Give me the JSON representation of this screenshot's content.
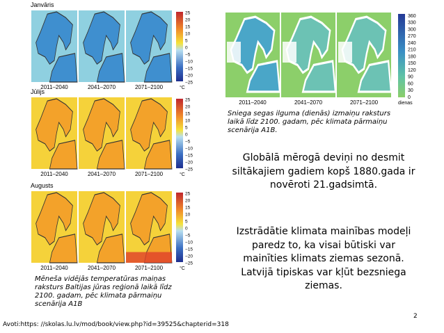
{
  "temperature_figure": {
    "panels": [
      {
        "month": "Janvāris"
      },
      {
        "month": "Jūlijs"
      },
      {
        "month": "Augusts"
      }
    ],
    "periods": [
      "2011–2040",
      "2041–2070",
      "2071–2100"
    ],
    "scale_labels": [
      "25",
      "20",
      "15",
      "10",
      "5",
      "0",
      "−5",
      "−10",
      "−15",
      "−20",
      "−25"
    ],
    "scale_unit": "°C",
    "caption": "Mēneša vidējās temperatūras maiņas raksturs Baltijas jūras reģionā laikā līdz 2100. gadam, pēc klimata pārmaiņu scenārija A1B"
  },
  "snow_figure": {
    "periods": [
      "2011–2040",
      "2041–2070",
      "2071–2100"
    ],
    "scale_labels": [
      "360",
      "330",
      "300",
      "270",
      "240",
      "210",
      "180",
      "150",
      "120",
      "90",
      "60",
      "30",
      "0"
    ],
    "scale_unit": "dienas",
    "caption": "Sniega segas ilguma (dienās) izmaiņu raksturs laikā līdz 2100. gadam, pēc klimata pārmaiņu scenārija A1B."
  },
  "paragraphs": [
    "Globālā mērogā deviņi no desmit siltākajiem gadiem kopš 1880.gada ir novēroti 21.gadsimtā.",
    "Izstrādātie klimata mainības modeļi paredz to, ka visai būtiski var mainīties klimats ziemas sezonā. Latvijā tipiskas var kļūt bezsniega ziemas."
  ],
  "page_number": "2",
  "source": "Avoti:https: //skolas.lu.lv/mod/book/view.php?id=39525&chapterid=318"
}
